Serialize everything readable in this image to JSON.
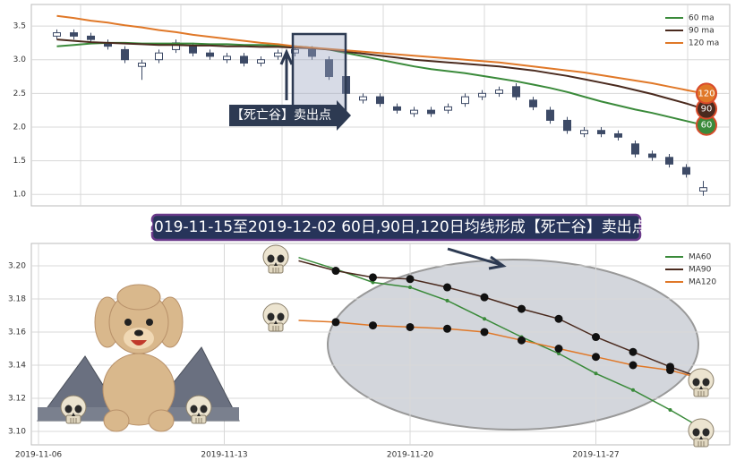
{
  "chart_data": [
    {
      "type": "candlestick",
      "open": [
        3.35,
        3.4,
        3.35,
        3.25,
        3.15,
        2.9,
        3.0,
        3.15,
        3.2,
        3.1,
        3.0,
        3.05,
        2.95,
        3.05,
        3.1,
        3.15,
        3.0,
        2.75,
        2.4,
        2.45,
        2.3,
        2.2,
        2.25,
        2.25,
        2.35,
        2.45,
        2.5,
        2.6,
        2.4,
        2.25,
        2.1,
        1.9,
        1.95,
        1.9,
        1.75,
        1.6,
        1.55,
        1.4,
        1.05
      ],
      "high": [
        3.45,
        3.45,
        3.4,
        3.3,
        3.2,
        3.0,
        3.15,
        3.3,
        3.25,
        3.15,
        3.1,
        3.1,
        3.05,
        3.15,
        3.2,
        3.2,
        3.05,
        2.8,
        2.5,
        2.5,
        2.35,
        2.3,
        2.3,
        2.35,
        2.5,
        2.55,
        2.6,
        2.65,
        2.45,
        2.3,
        2.15,
        2.0,
        2.0,
        1.95,
        1.8,
        1.65,
        1.6,
        1.45,
        1.2
      ],
      "low": [
        3.3,
        3.3,
        3.25,
        3.15,
        2.95,
        2.7,
        2.95,
        3.1,
        3.05,
        3.0,
        2.95,
        2.9,
        2.9,
        3.0,
        3.05,
        3.0,
        2.7,
        2.45,
        2.35,
        2.3,
        2.2,
        2.15,
        2.15,
        2.2,
        2.3,
        2.4,
        2.45,
        2.4,
        2.25,
        2.05,
        1.9,
        1.85,
        1.85,
        1.8,
        1.55,
        1.5,
        1.4,
        1.25,
        0.98
      ],
      "close": [
        3.4,
        3.35,
        3.3,
        3.2,
        3.0,
        2.95,
        3.1,
        3.25,
        3.1,
        3.05,
        3.05,
        2.95,
        3.0,
        3.1,
        3.15,
        3.05,
        2.75,
        2.5,
        2.45,
        2.35,
        2.25,
        2.25,
        2.2,
        2.3,
        2.45,
        2.5,
        2.55,
        2.45,
        2.3,
        2.1,
        1.95,
        1.95,
        1.9,
        1.85,
        1.6,
        1.55,
        1.45,
        1.3,
        1.1
      ],
      "up_color": "#ffffff",
      "down_color": "#3d4a66",
      "series": [
        {
          "name": "60 ma",
          "color": "#3a8a3a",
          "badge": "60",
          "values": [
            3.2,
            3.22,
            3.24,
            3.25,
            3.25,
            3.24,
            3.24,
            3.24,
            3.24,
            3.23,
            3.23,
            3.22,
            3.22,
            3.21,
            3.2,
            3.18,
            3.15,
            3.1,
            3.05,
            3.0,
            2.95,
            2.9,
            2.86,
            2.83,
            2.8,
            2.76,
            2.72,
            2.68,
            2.63,
            2.58,
            2.52,
            2.45,
            2.38,
            2.32,
            2.26,
            2.21,
            2.15,
            2.09,
            2.03
          ]
        },
        {
          "name": "90 ma",
          "color": "#4a2a1e",
          "badge": "90",
          "values": [
            3.3,
            3.28,
            3.26,
            3.25,
            3.24,
            3.23,
            3.22,
            3.22,
            3.21,
            3.21,
            3.2,
            3.2,
            3.19,
            3.19,
            3.18,
            3.17,
            3.15,
            3.12,
            3.09,
            3.06,
            3.03,
            3.0,
            2.98,
            2.96,
            2.94,
            2.92,
            2.9,
            2.87,
            2.84,
            2.8,
            2.76,
            2.71,
            2.66,
            2.61,
            2.55,
            2.49,
            2.42,
            2.35,
            2.27
          ]
        },
        {
          "name": "120 ma",
          "color": "#e07828",
          "badge": "120",
          "values": [
            3.65,
            3.62,
            3.58,
            3.55,
            3.51,
            3.48,
            3.44,
            3.41,
            3.37,
            3.34,
            3.31,
            3.28,
            3.25,
            3.23,
            3.2,
            3.18,
            3.16,
            3.14,
            3.12,
            3.1,
            3.08,
            3.06,
            3.04,
            3.02,
            3.0,
            2.98,
            2.96,
            2.93,
            2.9,
            2.87,
            2.84,
            2.81,
            2.77,
            2.73,
            2.69,
            2.65,
            2.6,
            2.55,
            2.5
          ]
        }
      ],
      "ylim": [
        0.83,
        3.82
      ],
      "yticks": [
        {
          "value": 1,
          "label": "1.0"
        },
        {
          "value": 1.5,
          "label": "1.5"
        },
        {
          "value": 2,
          "label": "2.0"
        },
        {
          "value": 2.5,
          "label": "2.5"
        },
        {
          "value": 3,
          "label": "3.0"
        },
        {
          "value": 3.5,
          "label": "3.5"
        }
      ],
      "grid": true,
      "legend": "upper right",
      "annotation": "【死亡谷】卖出点"
    },
    {
      "type": "line",
      "title": "2019-11-15至2019-12-02 60日,90日,120日均线形成【死亡谷】卖出点",
      "categories": [
        "2019-11-06",
        null,
        null,
        null,
        null,
        "2019-11-13",
        null,
        null,
        null,
        null,
        "2019-11-20",
        null,
        null,
        null,
        null,
        "2019-11-27",
        null,
        null,
        null
      ],
      "series": [
        {
          "name": "MA60",
          "color": "#3a8a3a",
          "marker_size": 2,
          "values": [
            null,
            null,
            null,
            null,
            null,
            null,
            null,
            3.205,
            3.198,
            3.19,
            3.187,
            3.179,
            3.168,
            3.157,
            3.147,
            3.135,
            3.125,
            3.113,
            3.1
          ]
        },
        {
          "name": "MA90",
          "color": "#4a2a1e",
          "marker_size": 4.5,
          "values": [
            null,
            null,
            null,
            null,
            null,
            null,
            null,
            3.203,
            3.197,
            3.193,
            3.192,
            3.187,
            3.181,
            3.174,
            3.168,
            3.157,
            3.148,
            3.139,
            3.131
          ]
        },
        {
          "name": "MA120",
          "color": "#e07828",
          "marker_size": 4.5,
          "values": [
            null,
            null,
            null,
            null,
            null,
            null,
            null,
            3.167,
            3.166,
            3.164,
            3.163,
            3.162,
            3.16,
            3.155,
            3.15,
            3.145,
            3.14,
            3.137,
            3.131
          ]
        }
      ],
      "ylim": [
        3.0919,
        3.2135
      ],
      "yticks": [
        {
          "value": 3.1,
          "label": "3.10"
        },
        {
          "value": 3.12,
          "label": "3.12"
        },
        {
          "value": 3.14,
          "label": "3.14"
        },
        {
          "value": 3.16,
          "label": "3.16"
        },
        {
          "value": 3.18,
          "label": "3.18"
        },
        {
          "value": 3.2,
          "label": "3.20"
        }
      ],
      "grid": true,
      "legend": "upper right"
    }
  ]
}
